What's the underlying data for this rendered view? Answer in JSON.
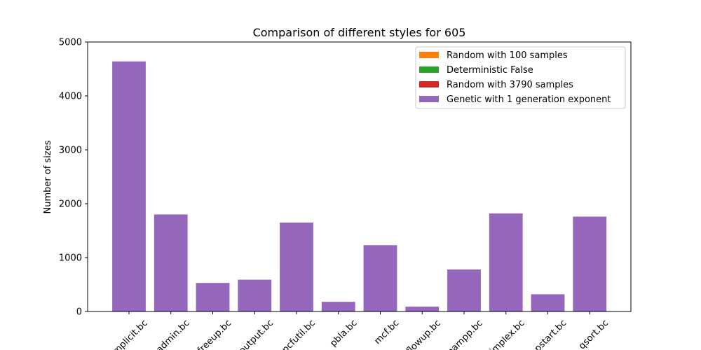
{
  "chart_data": {
    "type": "bar",
    "title": "Comparison of different styles for 605",
    "xlabel": "",
    "ylabel": "Number of sizes",
    "ylim": [
      0,
      5000
    ],
    "yticks": [
      0,
      1000,
      2000,
      3000,
      4000,
      5000
    ],
    "categories": [
      "implicit.bc",
      "admin.bc",
      "freeup.bc",
      "output.bc",
      "pcfutil.bc",
      "pbla.bc",
      "mcf.bc",
      "flowup.bc",
      "mampp.bc",
      "implex.bc",
      "pstart.bc",
      "qsort.bc"
    ],
    "category_label_rotation_deg": 45,
    "legend_position": "top-right",
    "series": [
      {
        "name": "Random with 100 samples",
        "color": "#ff7f0e",
        "values": [
          0,
          0,
          0,
          0,
          0,
          0,
          0,
          0,
          0,
          0,
          0,
          0
        ]
      },
      {
        "name": "Deterministic False",
        "color": "#2ca02c",
        "values": [
          0,
          0,
          0,
          0,
          0,
          0,
          0,
          0,
          0,
          0,
          0,
          0
        ]
      },
      {
        "name": "Random with 3790 samples",
        "color": "#d62728",
        "values": [
          0,
          0,
          0,
          0,
          0,
          0,
          0,
          0,
          0,
          0,
          0,
          0
        ]
      },
      {
        "name": "Genetic with 1 generation exponent",
        "color": "#9467bd",
        "values": [
          4640,
          1800,
          530,
          590,
          1650,
          180,
          1230,
          90,
          780,
          1820,
          320,
          1760
        ]
      }
    ]
  }
}
